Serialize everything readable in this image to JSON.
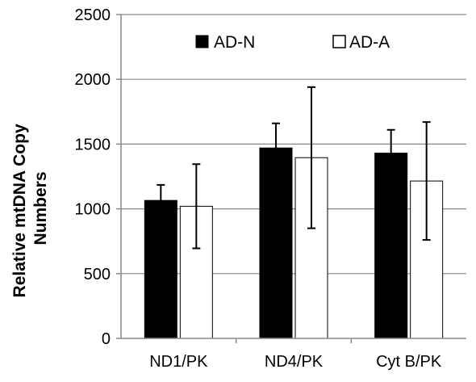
{
  "chart_data": {
    "type": "bar",
    "title": "",
    "xlabel": "",
    "ylabel": [
      "Relative mtDNA Copy",
      "Numbers"
    ],
    "ylim": [
      0,
      2500
    ],
    "yticks": [
      0,
      500,
      1000,
      1500,
      2000,
      2500
    ],
    "ytick_labels": [
      "0",
      "500",
      "1000",
      "1500",
      "2000",
      "2500"
    ],
    "categories": [
      "ND1/PK",
      "ND4/PK",
      "Cyt B/PK"
    ],
    "grid": true,
    "legend_position": "top",
    "series": [
      {
        "name": "AD-N",
        "fill": "#000000",
        "values": [
          1065,
          1470,
          1430
        ],
        "errors": [
          120,
          190,
          180
        ]
      },
      {
        "name": "AD-A",
        "fill": "#ffffff",
        "values": [
          1020,
          1395,
          1215
        ],
        "errors": [
          325,
          545,
          455
        ]
      }
    ]
  }
}
